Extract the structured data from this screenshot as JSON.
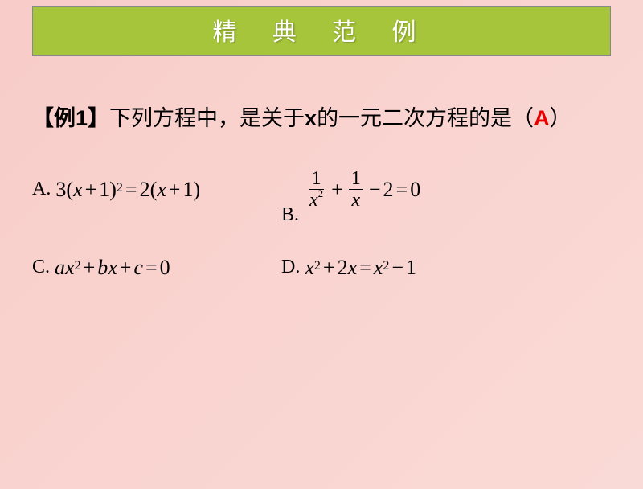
{
  "title": "精 典 范 例",
  "question": {
    "prefix": "【例1】",
    "text1": "下列方程中，是关于",
    "var": "x",
    "text2": "的一元二次方程的是（",
    "answer": "A",
    "text3": "）"
  },
  "options": {
    "A": {
      "label": "A."
    },
    "B": {
      "label": "B."
    },
    "C": {
      "label": "C."
    },
    "D": {
      "label": "D."
    }
  },
  "colors": {
    "background_start": "#f8ccc8",
    "background_end": "#fadad6",
    "title_bg": "#a6c53a",
    "title_text": "#ffffff",
    "answer": "#e60000",
    "text": "#000000"
  },
  "typography": {
    "title_fontsize": 30,
    "question_fontsize": 27,
    "option_fontsize": 24,
    "math_fontsize": 26
  }
}
